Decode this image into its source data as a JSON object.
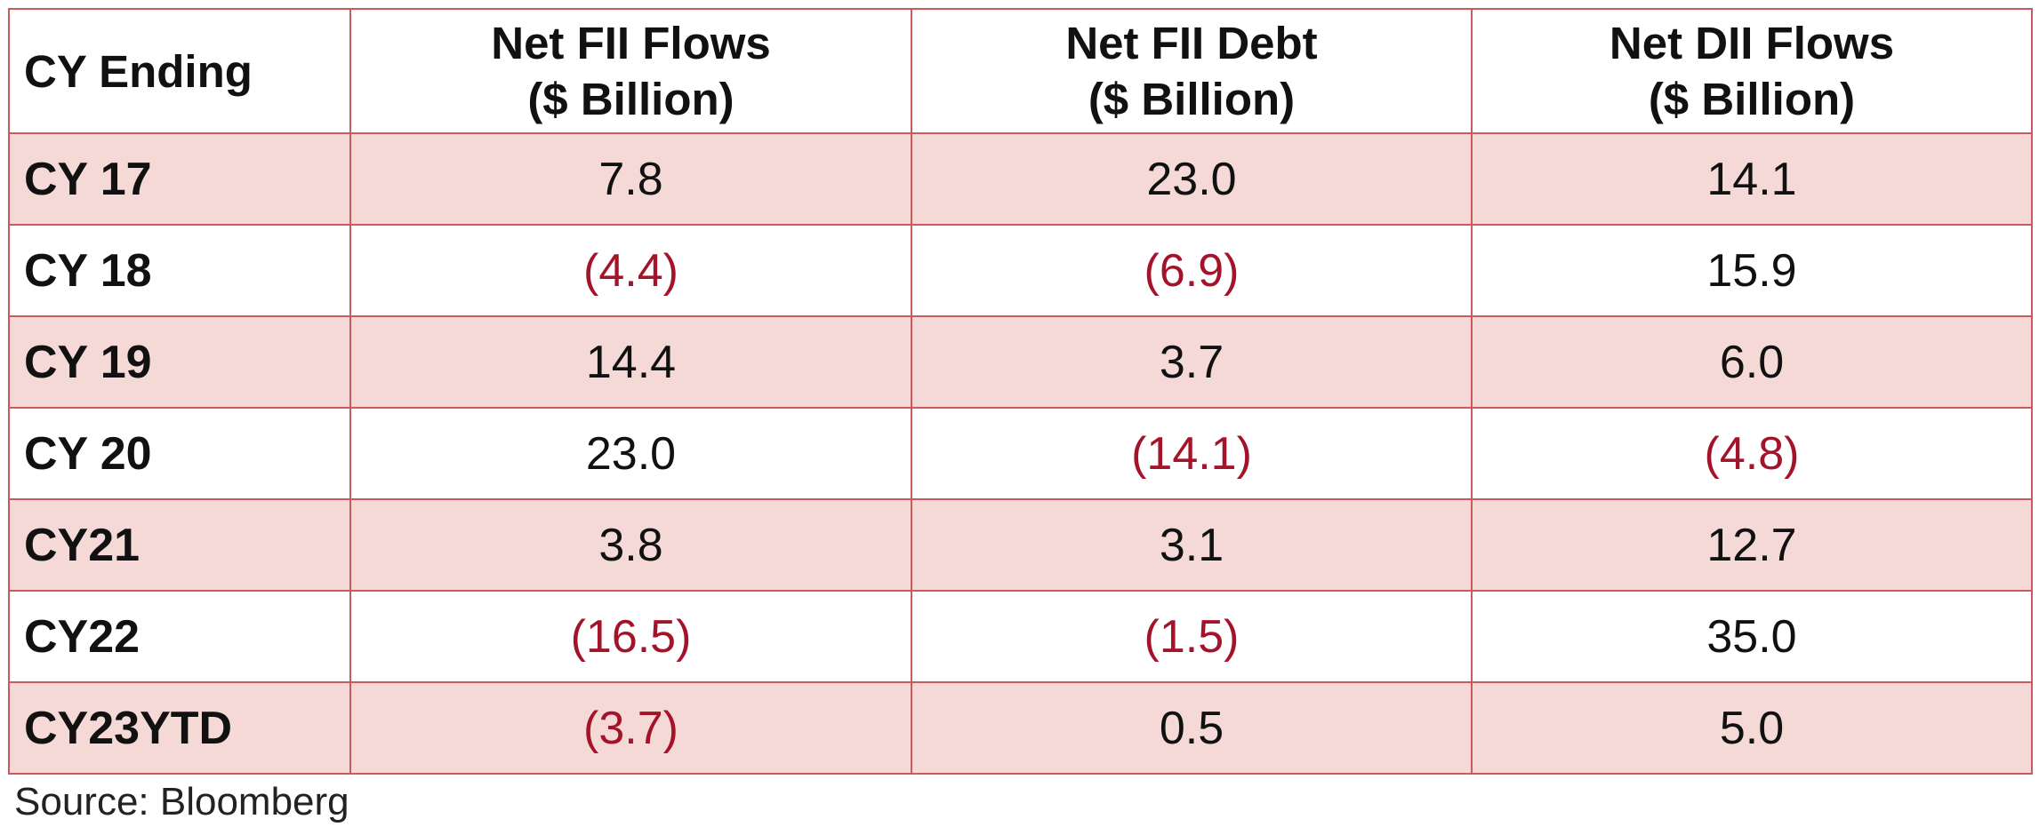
{
  "chart_data": {
    "type": "table",
    "columns": [
      {
        "line1": "CY Ending",
        "line2": ""
      },
      {
        "line1": "Net FII Flows",
        "line2": "($ Billion)"
      },
      {
        "line1": "Net FII Debt",
        "line2": "($ Billion)"
      },
      {
        "line1": "Net DII Flows",
        "line2": "($ Billion)"
      }
    ],
    "rows": [
      {
        "label": "CY 17",
        "cells": [
          {
            "text": "7.8",
            "value": 7.8
          },
          {
            "text": "23.0",
            "value": 23.0
          },
          {
            "text": "14.1",
            "value": 14.1
          }
        ]
      },
      {
        "label": "CY 18",
        "cells": [
          {
            "text": "(4.4)",
            "value": -4.4
          },
          {
            "text": "(6.9)",
            "value": -6.9
          },
          {
            "text": "15.9",
            "value": 15.9
          }
        ]
      },
      {
        "label": "CY 19",
        "cells": [
          {
            "text": "14.4",
            "value": 14.4
          },
          {
            "text": "3.7",
            "value": 3.7
          },
          {
            "text": "6.0",
            "value": 6.0
          }
        ]
      },
      {
        "label": "CY 20",
        "cells": [
          {
            "text": "23.0",
            "value": 23.0
          },
          {
            "text": "(14.1)",
            "value": -14.1
          },
          {
            "text": "(4.8)",
            "value": -4.8
          }
        ]
      },
      {
        "label": "CY21",
        "cells": [
          {
            "text": "3.8",
            "value": 3.8
          },
          {
            "text": "3.1",
            "value": 3.1
          },
          {
            "text": "12.7",
            "value": 12.7
          }
        ]
      },
      {
        "label": "CY22",
        "cells": [
          {
            "text": "(16.5)",
            "value": -16.5
          },
          {
            "text": "(1.5)",
            "value": -1.5
          },
          {
            "text": "35.0",
            "value": 35.0
          }
        ]
      },
      {
        "label": "CY23YTD",
        "cells": [
          {
            "text": "(3.7)",
            "value": -3.7
          },
          {
            "text": "0.5",
            "value": 0.5
          },
          {
            "text": "5.0",
            "value": 5.0
          }
        ]
      }
    ],
    "source": "Source: Bloomberg"
  },
  "colors": {
    "border": "#c95b5e",
    "shaded_row": "#f5d9d7",
    "negative_text": "#a3142a",
    "text": "#111111"
  }
}
